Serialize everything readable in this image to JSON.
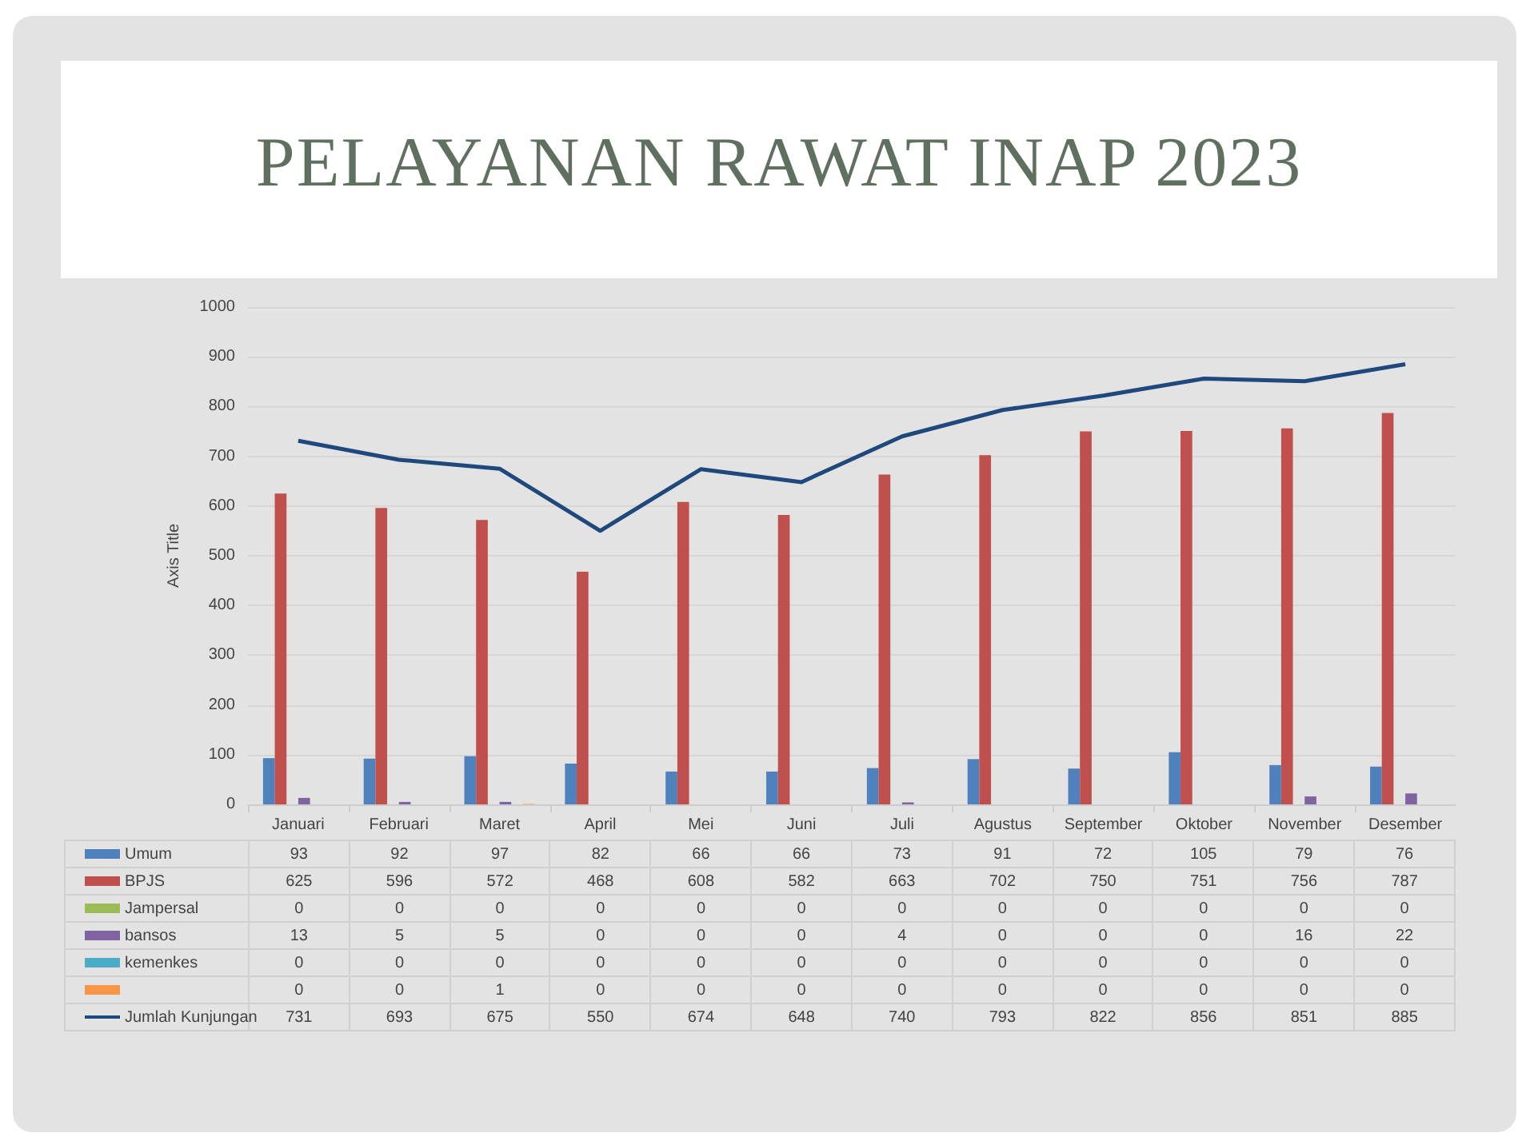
{
  "chart_data": {
    "type": "bar",
    "title": "PELAYANAN RAWAT INAP 2023",
    "ylabel": "Axis Title",
    "categories": [
      "Januari",
      "Februari",
      "Maret",
      "April",
      "Mei",
      "Juni",
      "Juli",
      "Agustus",
      "September",
      "Oktober",
      "November",
      "Desember"
    ],
    "series": [
      {
        "name": "Umum",
        "color": "#4f81bd",
        "values": [
          93,
          92,
          97,
          82,
          66,
          66,
          73,
          91,
          72,
          105,
          79,
          76
        ]
      },
      {
        "name": "BPJS",
        "color": "#c0504d",
        "values": [
          625,
          596,
          572,
          468,
          608,
          582,
          663,
          702,
          750,
          751,
          756,
          787
        ]
      },
      {
        "name": "Jampersal",
        "color": "#9bbb59",
        "values": [
          0,
          0,
          0,
          0,
          0,
          0,
          0,
          0,
          0,
          0,
          0,
          0
        ]
      },
      {
        "name": "bansos",
        "color": "#8064a2",
        "values": [
          13,
          5,
          5,
          0,
          0,
          0,
          4,
          0,
          0,
          0,
          16,
          22
        ]
      },
      {
        "name": "kemenkes",
        "color": "#4bacc6",
        "values": [
          0,
          0,
          0,
          0,
          0,
          0,
          0,
          0,
          0,
          0,
          0,
          0
        ]
      },
      {
        "color": "#f79646",
        "values": [
          0,
          0,
          1,
          0,
          0,
          0,
          0,
          0,
          0,
          0,
          0,
          0
        ]
      },
      {
        "name": "Jumlah Kunjungan",
        "type": "line",
        "color": "#1f497d",
        "values": [
          731,
          693,
          675,
          550,
          674,
          648,
          740,
          793,
          822,
          856,
          851,
          885
        ]
      }
    ],
    "ylim": [
      0,
      1000
    ],
    "yticks": [
      0,
      100,
      200,
      300,
      400,
      500,
      600,
      700,
      800,
      900,
      1000
    ],
    "grid": "y",
    "legend": "bottom",
    "data_labels": true
  }
}
